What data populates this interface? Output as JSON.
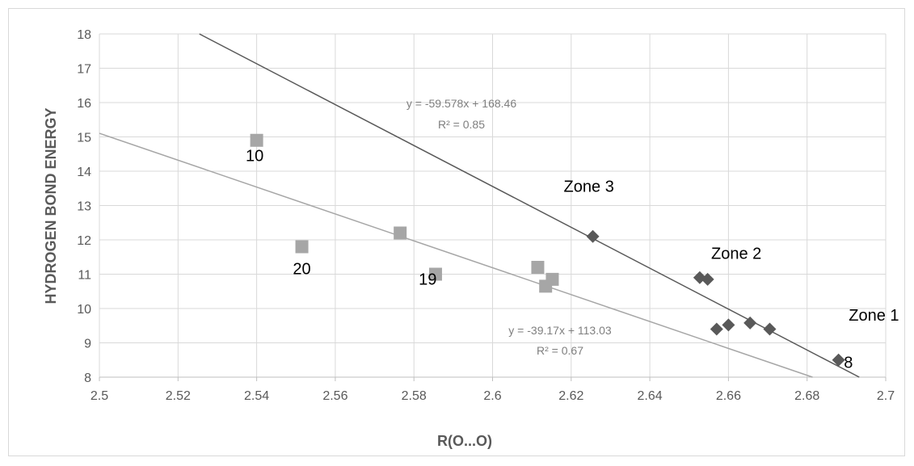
{
  "chart_data": {
    "type": "scatter",
    "title": "",
    "xlabel": "R(O...O)",
    "ylabel": "HYDROGEN BOND ENERGY",
    "xlim": [
      2.5,
      2.7
    ],
    "ylim": [
      8,
      18
    ],
    "x_ticks": [
      "2.5",
      "2.52",
      "2.54",
      "2.56",
      "2.58",
      "2.6",
      "2.62",
      "2.64",
      "2.66",
      "2.68",
      "2.7"
    ],
    "y_ticks": [
      "8",
      "9",
      "10",
      "11",
      "12",
      "13",
      "14",
      "15",
      "16",
      "17",
      "18"
    ],
    "grid": true,
    "legend": "none",
    "series": [
      {
        "marker": "square",
        "color": "#a6a6a6",
        "x": [
          2.54,
          2.5515,
          2.5765,
          2.5855,
          2.6115,
          2.6135,
          2.6152
        ],
        "y": [
          14.9,
          11.8,
          12.2,
          11.0,
          11.2,
          10.65,
          10.85
        ],
        "trendline": {
          "slope": -39.17,
          "intercept": 113.03,
          "equation": "y = -39.17x + 113.03",
          "r2": "R² = 0.67",
          "color": "#a6a6a6"
        }
      },
      {
        "marker": "diamond",
        "color": "#595959",
        "x": [
          2.6255,
          2.6527,
          2.6547,
          2.657,
          2.66,
          2.6655,
          2.6705,
          2.688
        ],
        "y": [
          12.1,
          10.9,
          10.85,
          9.4,
          9.52,
          9.58,
          9.4,
          8.5
        ],
        "trendline": {
          "slope": -59.578,
          "intercept": 168.46,
          "equation": "y = -59.578x + 168.46",
          "r2": "R² = 0.85",
          "color": "#595959"
        }
      }
    ],
    "annotations": [
      {
        "text": "10",
        "x": 2.5395,
        "y": 14.3
      },
      {
        "text": "20",
        "x": 2.5515,
        "y": 11.0
      },
      {
        "text": "19",
        "x": 2.5835,
        "y": 10.7
      },
      {
        "text": "Zone 3",
        "x": 2.6245,
        "y": 13.4
      },
      {
        "text": "Zone 2",
        "x": 2.662,
        "y": 11.45
      },
      {
        "text": "Zone 1",
        "x": 2.697,
        "y": 9.65
      },
      {
        "text": "8",
        "x": 2.6905,
        "y": 8.27
      }
    ]
  }
}
